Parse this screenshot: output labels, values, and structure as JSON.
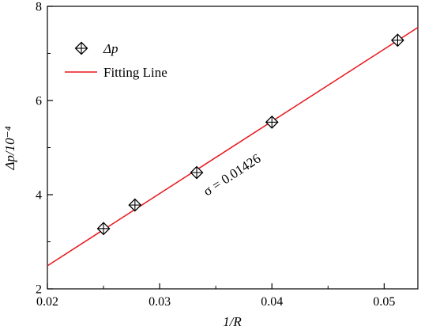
{
  "chart_data": {
    "type": "scatter",
    "xlabel": "1/R",
    "ylabel": "Δp/10⁻⁴",
    "xlim": [
      0.02,
      0.053
    ],
    "ylim": [
      2,
      8
    ],
    "x_ticks": [
      "0.02",
      "0.03",
      "0.04",
      "0.05"
    ],
    "y_ticks": [
      "2",
      "4",
      "6",
      "8"
    ],
    "grid": false,
    "legend_position": "top-left",
    "series": [
      {
        "name": "Δp",
        "marker": "diamond-cross",
        "color": "#000000",
        "points": [
          {
            "x": 0.025,
            "y": 3.28
          },
          {
            "x": 0.0278,
            "y": 3.78
          },
          {
            "x": 0.0333,
            "y": 4.47
          },
          {
            "x": 0.04,
            "y": 5.54
          },
          {
            "x": 0.0512,
            "y": 7.28
          }
        ]
      },
      {
        "name": "Fitting Line",
        "type": "line",
        "color": "#e8161b",
        "points": [
          {
            "x": 0.02,
            "y": 2.49
          },
          {
            "x": 0.053,
            "y": 7.55
          }
        ]
      }
    ],
    "annotation": "σ = 0.01426"
  }
}
